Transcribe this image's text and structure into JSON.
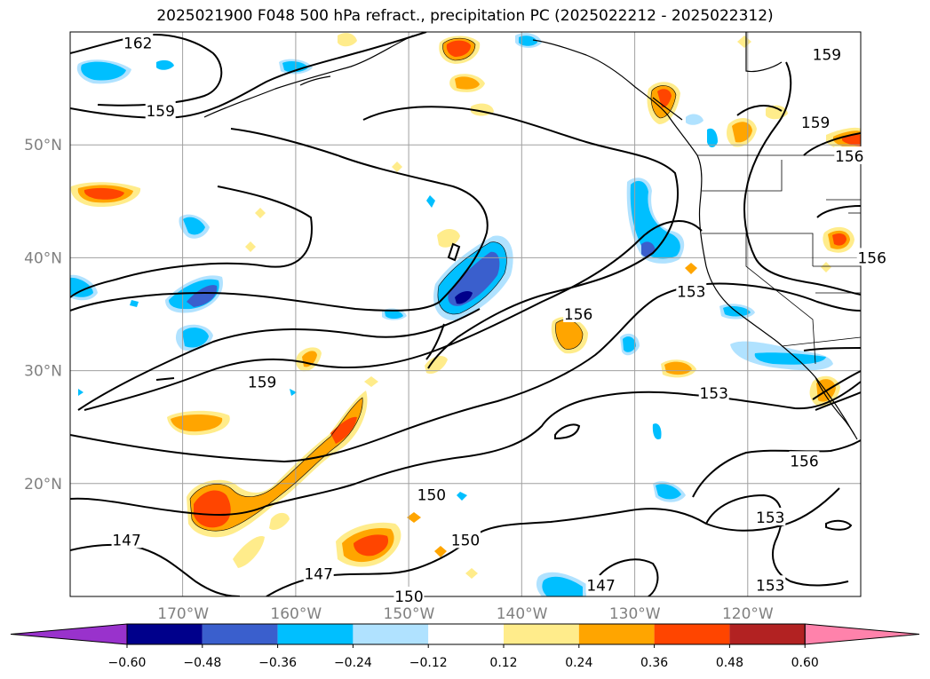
{
  "title": "2025021900 F048 500 hPa refract., precipitation PC (2025022212 - 2025022312)",
  "chart_data": {
    "type": "heatmap",
    "title": "2025021900 F048 500 hPa refract., precipitation PC (2025022212 - 2025022312)",
    "map_extent": {
      "lon": [
        -180,
        -110
      ],
      "lat": [
        10,
        60
      ]
    },
    "grid": true,
    "lon_ticks": [
      {
        "value": -170,
        "label": "170°W"
      },
      {
        "value": -160,
        "label": "160°W"
      },
      {
        "value": -150,
        "label": "150°W"
      },
      {
        "value": -140,
        "label": "140°W"
      },
      {
        "value": -130,
        "label": "130°W"
      },
      {
        "value": -120,
        "label": "120°W"
      }
    ],
    "lat_ticks": [
      {
        "value": 20,
        "label": "20°N"
      },
      {
        "value": 30,
        "label": "30°N"
      },
      {
        "value": 40,
        "label": "40°N"
      },
      {
        "value": 50,
        "label": "50°N"
      }
    ],
    "contour_labels": [
      {
        "text": "162",
        "lon": -174,
        "lat": 59
      },
      {
        "text": "159",
        "lon": -172,
        "lat": 53
      },
      {
        "text": "159",
        "lon": -163,
        "lat": 29
      },
      {
        "text": "156",
        "lon": -135,
        "lat": 35
      },
      {
        "text": "153",
        "lon": -125,
        "lat": 37
      },
      {
        "text": "153",
        "lon": -123,
        "lat": 28
      },
      {
        "text": "156",
        "lon": -115,
        "lat": 22
      },
      {
        "text": "153",
        "lon": -118,
        "lat": 17
      },
      {
        "text": "153",
        "lon": -118,
        "lat": 11
      },
      {
        "text": "150",
        "lon": -148,
        "lat": 19
      },
      {
        "text": "150",
        "lon": -145,
        "lat": 15
      },
      {
        "text": "150",
        "lon": -150,
        "lat": 10
      },
      {
        "text": "147",
        "lon": -175,
        "lat": 15
      },
      {
        "text": "147",
        "lon": -158,
        "lat": 12
      },
      {
        "text": "147",
        "lon": -133,
        "lat": 11
      },
      {
        "text": "159",
        "lon": -113,
        "lat": 58
      },
      {
        "text": "159",
        "lon": -114,
        "lat": 52
      },
      {
        "text": "156",
        "lon": -111,
        "lat": 49
      },
      {
        "text": "156",
        "lon": -109,
        "lat": 40
      }
    ],
    "colorbar": {
      "ticks": [
        "−0.60",
        "−0.48",
        "−0.36",
        "−0.24",
        "−0.12",
        "0.12",
        "0.24",
        "0.36",
        "0.48",
        "0.60"
      ],
      "colors": [
        "#9932cc",
        "#00008b",
        "#3a5fcd",
        "#00bfff",
        "#b0e2ff",
        "#ffffff",
        "#ffec8b",
        "#ffa500",
        "#ff4500",
        "#b22222",
        "#ff82ab"
      ],
      "extend": "both"
    }
  }
}
